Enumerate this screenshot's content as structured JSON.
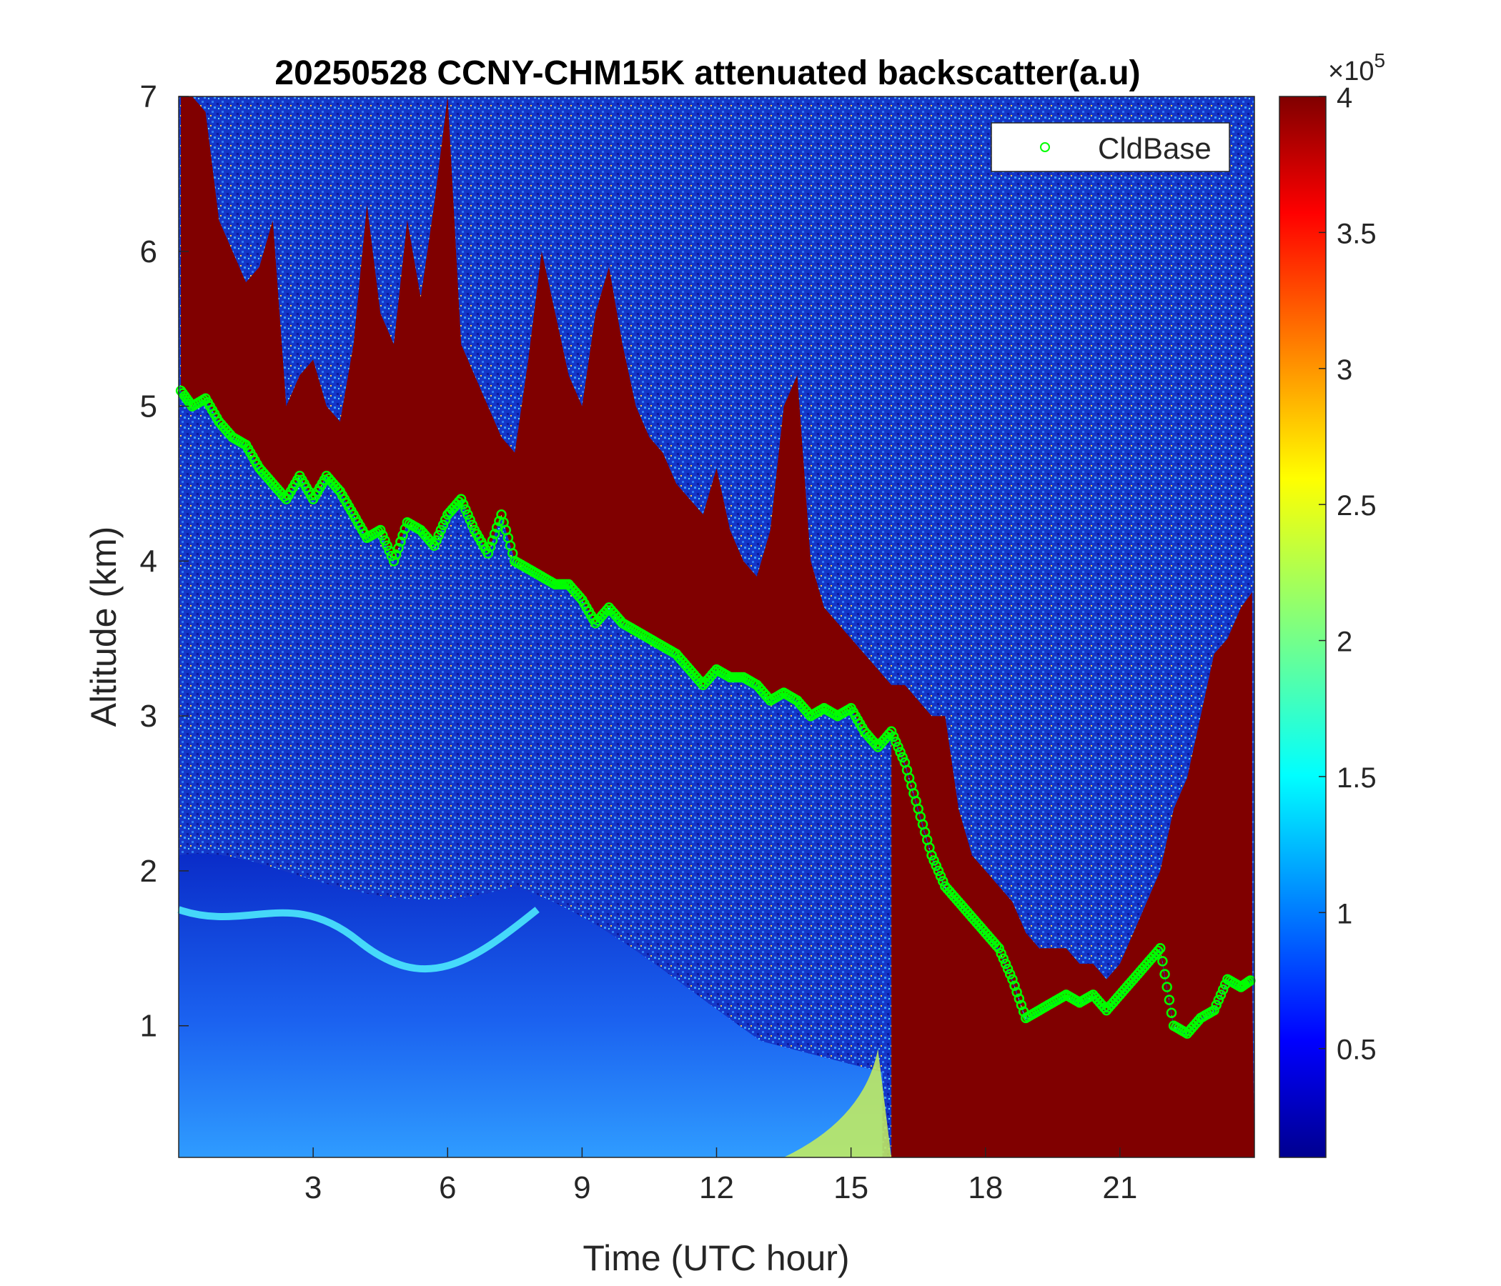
{
  "chart_data": {
    "type": "heatmap",
    "title": "20250528 CCNY-CHM15K attenuated backscatter(a.u)",
    "xlabel": "Time (UTC hour)",
    "ylabel": "Altitude (km)",
    "xlim": [
      0,
      24
    ],
    "ylim": [
      0.15,
      7
    ],
    "xticks": [
      3,
      6,
      9,
      12,
      15,
      18,
      21
    ],
    "xtick_labels": [
      "3",
      "6",
      "9",
      "12",
      "15",
      "18",
      "21"
    ],
    "yticks": [
      1,
      2,
      3,
      4,
      5,
      6,
      7
    ],
    "ytick_labels": [
      "1",
      "2",
      "3",
      "4",
      "5",
      "6",
      "7"
    ],
    "colorbar": {
      "colormap": "jet",
      "clim": [
        0.1,
        4
      ],
      "exponent_label": "×10",
      "exponent_power": "5",
      "ticks": [
        0.5,
        1,
        1.5,
        2,
        2.5,
        3,
        3.5,
        4
      ],
      "tick_labels": [
        "0.5",
        "1",
        "1.5",
        "2",
        "2.5",
        "3",
        "3.5",
        "4"
      ]
    },
    "legend": {
      "location": "top-right",
      "entries": [
        {
          "name": "CldBase",
          "marker": "circle",
          "color": "#00ff00"
        }
      ]
    },
    "series": [
      {
        "name": "CldBase",
        "marker": "circle",
        "color": "#00ff00",
        "x": [
          0.05,
          0.3,
          0.6,
          0.9,
          1.2,
          1.5,
          1.8,
          2.1,
          2.4,
          2.7,
          3.0,
          3.3,
          3.6,
          3.9,
          4.2,
          4.5,
          4.8,
          5.1,
          5.4,
          5.7,
          6.0,
          6.3,
          6.6,
          6.9,
          7.2,
          7.5,
          7.8,
          8.1,
          8.4,
          8.7,
          9.0,
          9.3,
          9.6,
          9.9,
          10.2,
          10.5,
          10.8,
          11.1,
          11.4,
          11.7,
          12.0,
          12.3,
          12.6,
          12.9,
          13.2,
          13.5,
          13.8,
          14.1,
          14.4,
          14.7,
          15.0,
          15.3,
          15.6,
          15.9,
          16.2,
          16.5,
          16.8,
          17.1,
          17.4,
          17.7,
          18.0,
          18.3,
          18.6,
          18.9,
          19.2,
          19.5,
          19.8,
          20.1,
          20.4,
          20.7,
          21.0,
          21.3,
          21.6,
          21.9,
          22.2,
          22.5,
          22.8,
          23.1,
          23.4,
          23.7,
          23.95
        ],
        "y": [
          5.1,
          5.0,
          5.05,
          4.9,
          4.8,
          4.75,
          4.6,
          4.5,
          4.4,
          4.55,
          4.4,
          4.55,
          4.45,
          4.3,
          4.15,
          4.2,
          4.0,
          4.25,
          4.2,
          4.1,
          4.3,
          4.4,
          4.2,
          4.05,
          4.3,
          4.0,
          3.95,
          3.9,
          3.85,
          3.85,
          3.75,
          3.6,
          3.7,
          3.6,
          3.55,
          3.5,
          3.45,
          3.4,
          3.3,
          3.2,
          3.3,
          3.25,
          3.25,
          3.2,
          3.1,
          3.15,
          3.1,
          3.0,
          3.05,
          3.0,
          3.05,
          2.9,
          2.8,
          2.9,
          2.7,
          2.4,
          2.1,
          1.9,
          1.8,
          1.7,
          1.6,
          1.5,
          1.3,
          1.05,
          1.1,
          1.15,
          1.2,
          1.15,
          1.2,
          1.1,
          1.2,
          1.3,
          1.4,
          1.5,
          1.0,
          0.95,
          1.05,
          1.1,
          1.3,
          1.25,
          1.3
        ]
      }
    ],
    "regions": [
      {
        "label": "",
        "value_range": [
          3.9,
          4
        ]
      },
      {
        "label": "",
        "value_range": [
          0.2,
          0.8
        ]
      }
    ]
  }
}
